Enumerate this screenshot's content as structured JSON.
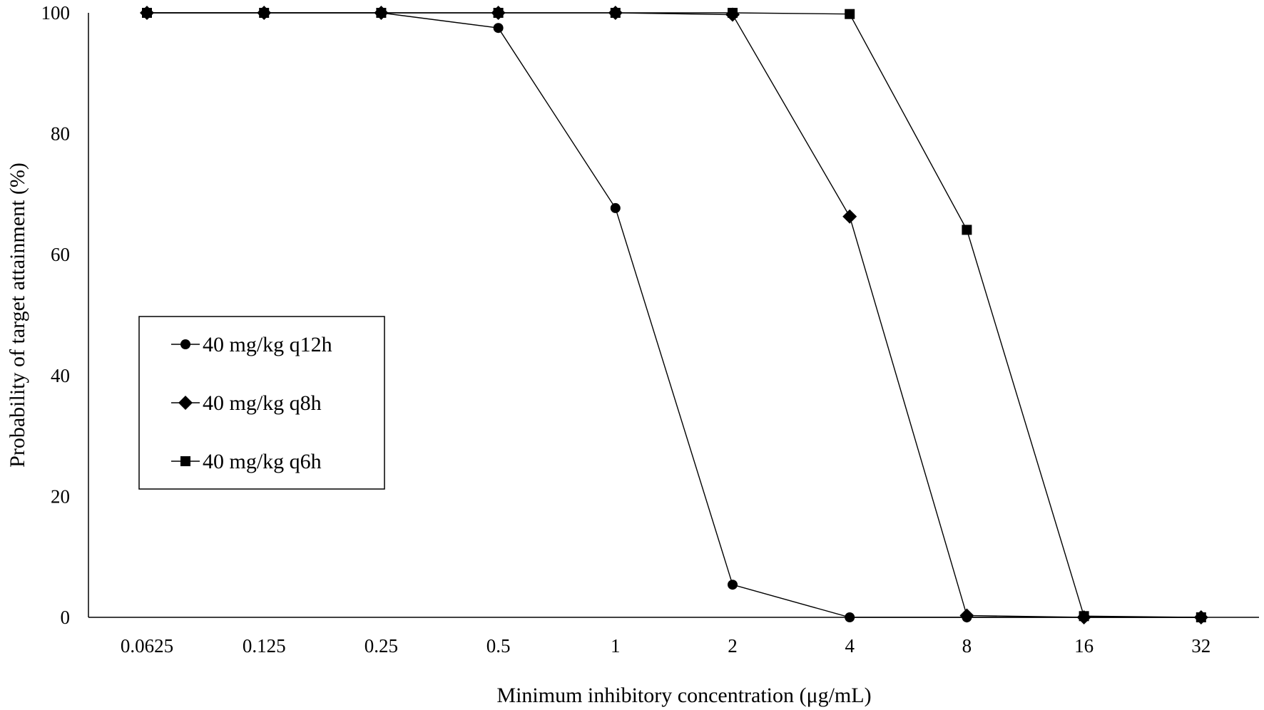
{
  "chart_data": {
    "type": "line",
    "title": "",
    "xlabel": "Minimum inhibitory concentration (μg/mL)",
    "ylabel": "Probability of target attainment (%)",
    "ylim": [
      0,
      100
    ],
    "y_ticks": [
      "0",
      "20",
      "40",
      "60",
      "80",
      "100"
    ],
    "categories": [
      "0.0625",
      "0.125",
      "0.25",
      "0.5",
      "1",
      "2",
      "4",
      "8",
      "16",
      "32"
    ],
    "grid": false,
    "legend_position": "center-left",
    "series": [
      {
        "name": "40 mg/kg q12h",
        "marker": "circle",
        "values": [
          100,
          100,
          100,
          97.5,
          67.7,
          5.4,
          0,
          0,
          0,
          0
        ]
      },
      {
        "name": "40 mg/kg q8h",
        "marker": "diamond",
        "values": [
          100,
          100,
          100,
          100,
          100,
          99.7,
          66.3,
          0.3,
          0,
          0
        ]
      },
      {
        "name": "40 mg/kg q6h",
        "marker": "square",
        "values": [
          100,
          100,
          100,
          100,
          100,
          100,
          99.8,
          64.1,
          0.2,
          0
        ]
      }
    ],
    "colors": {
      "line": "#000000",
      "marker": "#000000",
      "axis": "#000000"
    }
  }
}
